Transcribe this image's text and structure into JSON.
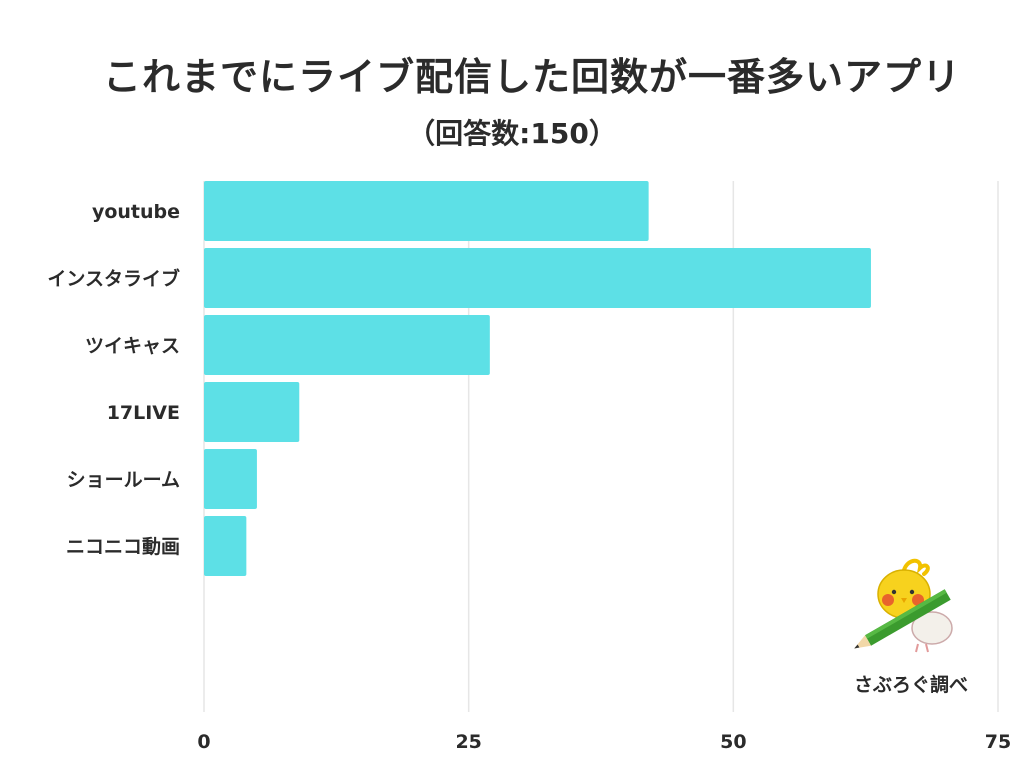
{
  "chart_data": {
    "type": "bar",
    "orientation": "horizontal",
    "title": "これまでにライブ配信した回数が一番多いアプリ",
    "subtitle": "（回答数:150）",
    "categories": [
      "youtube",
      "インスタライブ",
      "ツイキャス",
      "17LIVE",
      "ショールーム",
      "ニコニコ動画"
    ],
    "values": [
      42,
      63,
      27,
      9,
      5,
      4
    ],
    "xlim": [
      0,
      75
    ],
    "xticks": [
      "0",
      "25",
      "50",
      "75"
    ],
    "xtick_values": [
      0,
      25,
      50,
      75
    ],
    "grid": true,
    "bar_color": "#5de0e6",
    "xlabel": "",
    "ylabel": ""
  },
  "brand": {
    "label": "さぶろぐ調べ",
    "icon": "bird-mascot-icon"
  }
}
